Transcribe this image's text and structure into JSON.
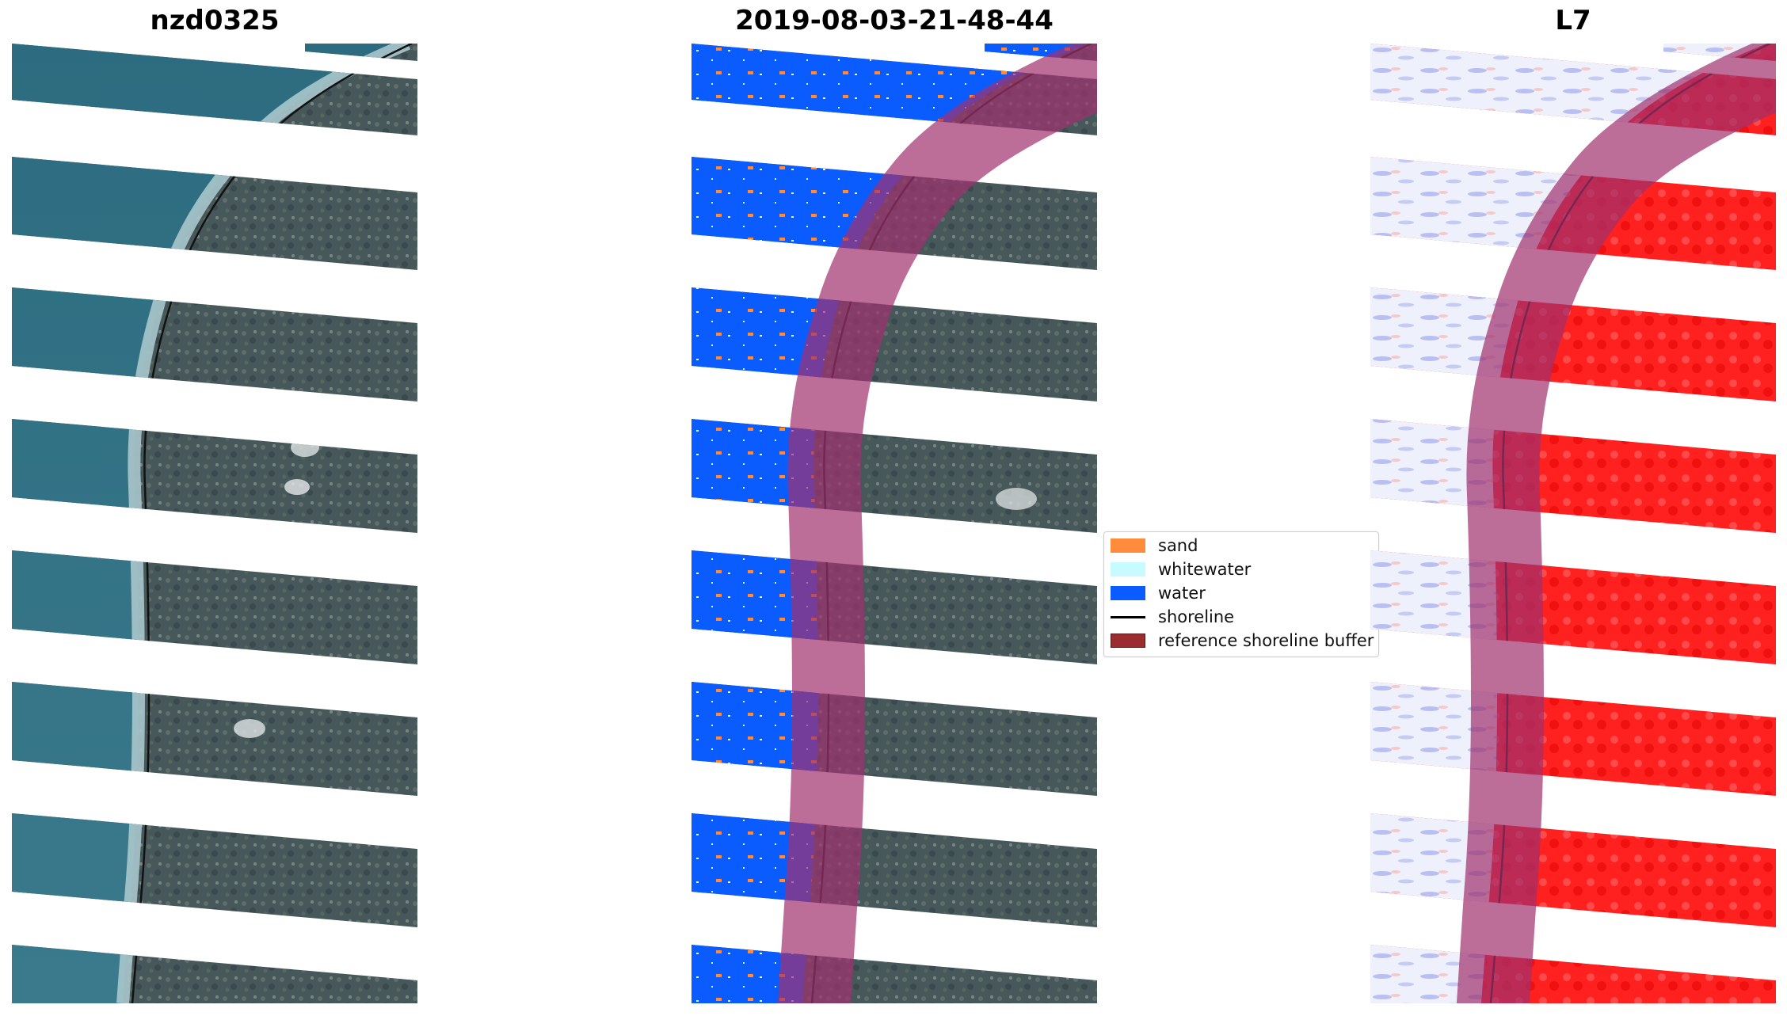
{
  "panels": [
    {
      "title": "nzd0325"
    },
    {
      "title": "2019-08-03-21-48-44"
    },
    {
      "title": "L7"
    }
  ],
  "legend": {
    "items": [
      {
        "label": "sand",
        "color": "#ff8c3a",
        "kind": "patch"
      },
      {
        "label": "whitewater",
        "color": "#c8fbff",
        "kind": "patch"
      },
      {
        "label": "water",
        "color": "#0a5cff",
        "kind": "patch"
      },
      {
        "label": "shoreline",
        "color": "#000000",
        "kind": "line"
      },
      {
        "label": "reference shoreline buffer",
        "color": "#9b2d30",
        "kind": "patch"
      }
    ]
  },
  "colors": {
    "ocean": "#2f6f86",
    "land": "#4b5a5c",
    "surf": "#a9c6cc",
    "water_class": "#0a5cff",
    "buffer": "#a0306e",
    "index_positive": "#ff1a1a",
    "index_negative": "#c9cdf4"
  }
}
